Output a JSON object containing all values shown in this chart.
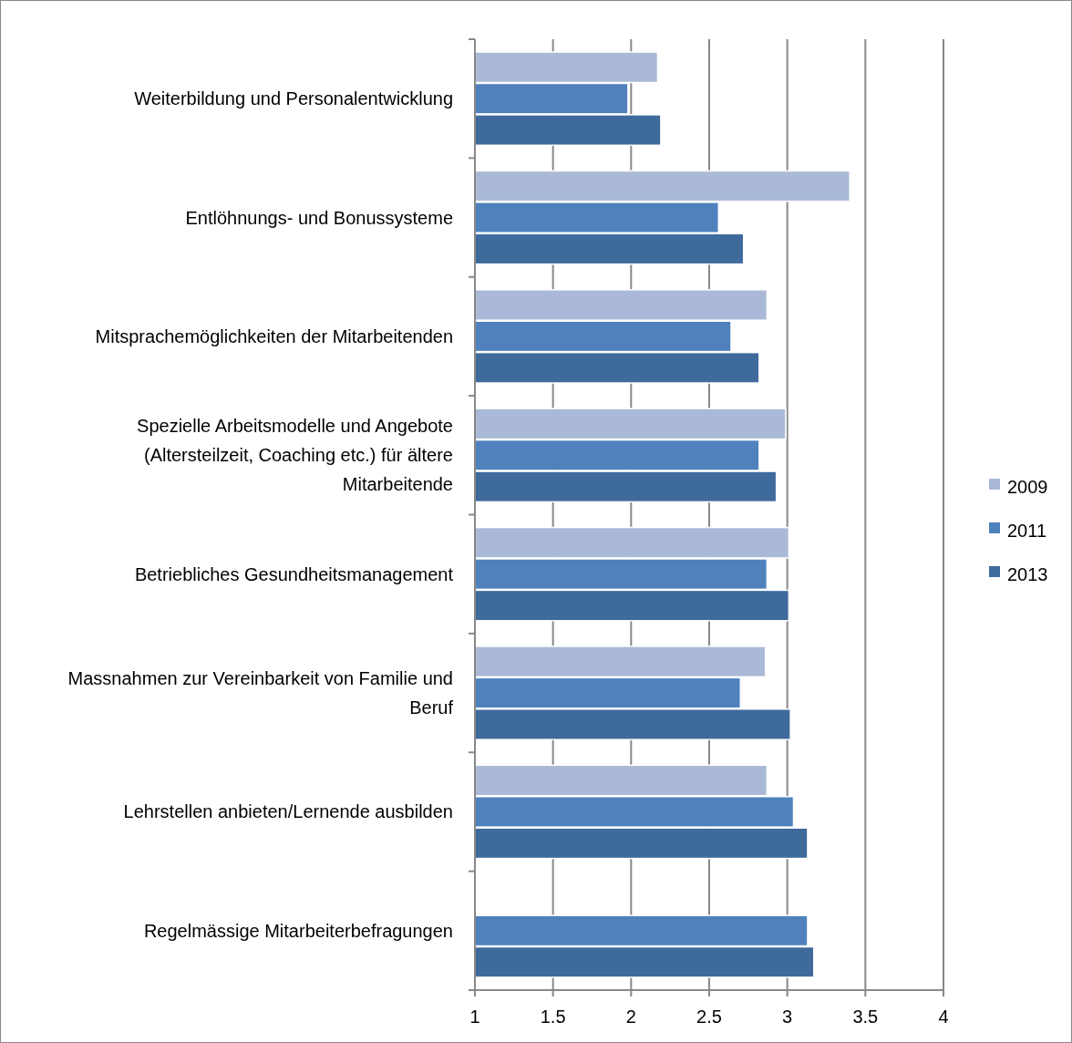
{
  "chart_data": {
    "type": "bar",
    "orientation": "horizontal",
    "categories": [
      "Weiterbildung und Personalentwicklung",
      "Entlöhnungs- und Bonussysteme",
      "Mitsprachemöglichkeiten der Mitarbeitenden",
      "Spezielle Arbeitsmodelle und Angebote (Altersteilzeit, Coaching etc.) für ältere Mitarbeitende",
      "Betriebliches Gesundheitsmanagement",
      "Massnahmen zur Vereinbarkeit von Familie und Beruf",
      "Lehrstellen anbieten/Lernende ausbilden",
      "Regelmässige Mitarbeiterbefragungen"
    ],
    "series": [
      {
        "name": "2009",
        "color": "#aab9d7",
        "values": [
          2.17,
          3.4,
          2.87,
          2.99,
          3.01,
          2.86,
          2.87,
          null
        ]
      },
      {
        "name": "2011",
        "color": "#4f81bd",
        "values": [
          1.98,
          2.56,
          2.64,
          2.82,
          2.87,
          2.7,
          3.04,
          3.13
        ]
      },
      {
        "name": "2013",
        "color": "#3f6a9c",
        "values": [
          2.19,
          2.72,
          2.82,
          2.93,
          3.01,
          3.02,
          3.13,
          3.17
        ]
      }
    ],
    "xlim": [
      1,
      4
    ],
    "xticks": [
      1,
      1.5,
      2,
      2.5,
      3,
      3.5,
      4
    ],
    "grid": "x",
    "legend": "right"
  }
}
